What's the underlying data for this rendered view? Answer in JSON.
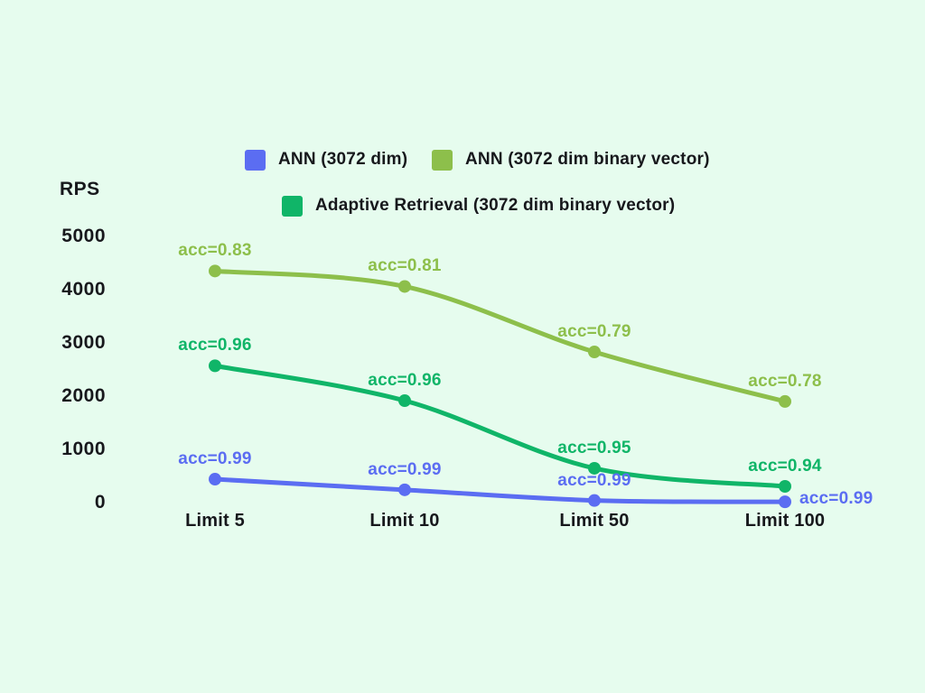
{
  "colors": {
    "background": "#e6fcee",
    "text": "#17181c"
  },
  "chart_data": {
    "type": "line",
    "title": "",
    "ylabel": "RPS",
    "xlabel": "",
    "grid": false,
    "legend_position": "top",
    "ylim": [
      0,
      5000
    ],
    "yticks": [
      5000,
      4000,
      3000,
      2000,
      1000,
      0
    ],
    "categories": [
      "Limit 5",
      "Limit 10",
      "Limit 50",
      "Limit 100"
    ],
    "series": [
      {
        "name": "ANN (3072 dim)",
        "color": "#5b6df2",
        "values": [
          440,
          240,
          40,
          15
        ],
        "point_labels": [
          "acc=0.99",
          "acc=0.99",
          "acc=0.99",
          "acc=0.99"
        ],
        "label_sides": [
          "above",
          "above",
          "above",
          "right"
        ]
      },
      {
        "name": "ANN (3072 dim binary vector)",
        "color": "#8dbf4b",
        "values": [
          4350,
          4060,
          2830,
          1900
        ],
        "point_labels": [
          "acc=0.83",
          "acc=0.81",
          "acc=0.79",
          "acc=0.78"
        ],
        "label_sides": [
          "above",
          "above",
          "above",
          "above"
        ]
      },
      {
        "name": "Adaptive Retrieval (3072 dim binary vector)",
        "color": "#10b568",
        "values": [
          2570,
          1915,
          645,
          305
        ],
        "point_labels": [
          "acc=0.96",
          "acc=0.96",
          "acc=0.95",
          "acc=0.94"
        ],
        "label_sides": [
          "above",
          "above",
          "above",
          "above"
        ]
      }
    ]
  }
}
